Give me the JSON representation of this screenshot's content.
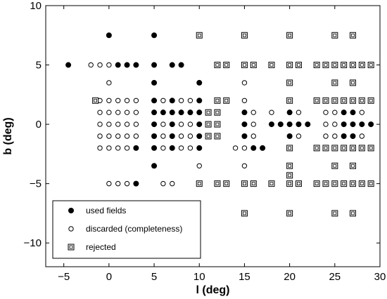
{
  "chart_data": {
    "type": "scatter",
    "title": "",
    "xlabel": "l (deg)",
    "ylabel": "b (deg)",
    "xlim": [
      -7,
      30
    ],
    "ylim": [
      -12,
      10
    ],
    "x_ticks": [
      -5,
      0,
      5,
      10,
      15,
      20,
      25,
      30
    ],
    "y_ticks": [
      -10,
      -5,
      0,
      5,
      10
    ],
    "x_tick_labels": [
      "−5",
      "0",
      "5",
      "10",
      "15",
      "20",
      "25",
      "30"
    ],
    "y_tick_labels": [
      "−10",
      "−5",
      "0",
      "5",
      "10"
    ],
    "grid": false,
    "legend_position": "lower-left",
    "series": [
      {
        "name": "used fields",
        "marker": "filled-circle",
        "color": "#000000",
        "points": [
          [
            -4.5,
            5
          ],
          [
            1,
            5
          ],
          [
            2,
            5
          ],
          [
            3,
            5
          ],
          [
            0,
            7.5
          ],
          [
            5,
            7.5
          ],
          [
            5,
            5
          ],
          [
            7,
            5
          ],
          [
            8,
            5
          ],
          [
            5,
            3.5
          ],
          [
            10,
            3.5
          ],
          [
            5,
            2
          ],
          [
            7,
            2
          ],
          [
            10,
            2
          ],
          [
            5,
            1
          ],
          [
            6,
            1
          ],
          [
            7,
            1
          ],
          [
            8,
            1
          ],
          [
            9,
            1
          ],
          [
            10,
            1
          ],
          [
            15,
            1
          ],
          [
            20,
            1
          ],
          [
            26,
            1
          ],
          [
            27,
            1
          ],
          [
            5,
            0
          ],
          [
            7,
            0
          ],
          [
            10,
            0
          ],
          [
            15,
            0
          ],
          [
            18,
            0
          ],
          [
            19,
            0
          ],
          [
            20,
            0
          ],
          [
            21,
            0
          ],
          [
            22,
            0
          ],
          [
            26,
            0
          ],
          [
            27,
            0
          ],
          [
            28,
            0
          ],
          [
            29,
            0
          ],
          [
            5,
            -1
          ],
          [
            7,
            -1
          ],
          [
            10,
            -1
          ],
          [
            15,
            -1
          ],
          [
            20,
            -1
          ],
          [
            26,
            -1
          ],
          [
            27,
            -1
          ],
          [
            3,
            -2
          ],
          [
            5,
            -2
          ],
          [
            7,
            -2
          ],
          [
            10,
            -2
          ],
          [
            16,
            -2
          ],
          [
            17,
            -2
          ],
          [
            5,
            -3.5
          ],
          [
            3,
            -5
          ]
        ]
      },
      {
        "name": "discarded (completeness)",
        "marker": "open-circle",
        "color": "#000000",
        "points": [
          [
            -2,
            5
          ],
          [
            -1,
            5
          ],
          [
            0,
            5
          ],
          [
            0,
            3.5
          ],
          [
            15,
            3.5
          ],
          [
            -1,
            2
          ],
          [
            0,
            2
          ],
          [
            1,
            2
          ],
          [
            2,
            2
          ],
          [
            3,
            2
          ],
          [
            6,
            2
          ],
          [
            8,
            2
          ],
          [
            9,
            2
          ],
          [
            15,
            2
          ],
          [
            -1,
            1
          ],
          [
            0,
            1
          ],
          [
            1,
            1
          ],
          [
            2,
            1
          ],
          [
            3,
            1
          ],
          [
            16,
            1
          ],
          [
            18,
            1
          ],
          [
            21,
            1
          ],
          [
            24,
            1
          ],
          [
            25,
            1
          ],
          [
            28,
            1
          ],
          [
            -1,
            0
          ],
          [
            0,
            0
          ],
          [
            1,
            0
          ],
          [
            2,
            0
          ],
          [
            3,
            0
          ],
          [
            6,
            0
          ],
          [
            8,
            0
          ],
          [
            9,
            0
          ],
          [
            16,
            0
          ],
          [
            24,
            0
          ],
          [
            25,
            0
          ],
          [
            -1,
            -1
          ],
          [
            0,
            -1
          ],
          [
            1,
            -1
          ],
          [
            2,
            -1
          ],
          [
            3,
            -1
          ],
          [
            6,
            -1
          ],
          [
            8,
            -1
          ],
          [
            9,
            -1
          ],
          [
            16,
            -1
          ],
          [
            21,
            -1
          ],
          [
            24,
            -1
          ],
          [
            25,
            -1
          ],
          [
            28,
            -1
          ],
          [
            -1,
            -2
          ],
          [
            0,
            -2
          ],
          [
            1,
            -2
          ],
          [
            2,
            -2
          ],
          [
            6,
            -2
          ],
          [
            8,
            -2
          ],
          [
            9,
            -2
          ],
          [
            14,
            -2
          ],
          [
            15,
            -2
          ],
          [
            10,
            -3.5
          ],
          [
            15,
            -3.5
          ],
          [
            0,
            -5
          ],
          [
            1,
            -5
          ],
          [
            2,
            -5
          ],
          [
            6,
            -5
          ],
          [
            7,
            -5
          ]
        ]
      },
      {
        "name": "rejected",
        "marker": "open-square",
        "color": "#000000",
        "points": [
          [
            10,
            7.5
          ],
          [
            15,
            7.5
          ],
          [
            20,
            7.5
          ],
          [
            25,
            7.5
          ],
          [
            27,
            7.5
          ],
          [
            12,
            5
          ],
          [
            13,
            5
          ],
          [
            15,
            5
          ],
          [
            16,
            5
          ],
          [
            18,
            5
          ],
          [
            20,
            5
          ],
          [
            21,
            5
          ],
          [
            23,
            5
          ],
          [
            24,
            5
          ],
          [
            25,
            5
          ],
          [
            26,
            5
          ],
          [
            27,
            5
          ],
          [
            28,
            5
          ],
          [
            29,
            5
          ],
          [
            20,
            3.5
          ],
          [
            25,
            3.5
          ],
          [
            27,
            3.5
          ],
          [
            -1.5,
            2
          ],
          [
            12,
            2
          ],
          [
            13,
            2
          ],
          [
            20,
            2
          ],
          [
            23,
            2
          ],
          [
            24,
            2
          ],
          [
            25,
            2
          ],
          [
            26,
            2
          ],
          [
            27,
            2
          ],
          [
            28,
            2
          ],
          [
            29,
            2
          ],
          [
            11,
            1
          ],
          [
            12,
            1
          ],
          [
            11,
            0
          ],
          [
            12,
            0
          ],
          [
            11,
            -1
          ],
          [
            12,
            -1
          ],
          [
            20,
            -2
          ],
          [
            23,
            -2
          ],
          [
            24,
            -2
          ],
          [
            25,
            -2
          ],
          [
            26,
            -2
          ],
          [
            27,
            -2
          ],
          [
            28,
            -2
          ],
          [
            29,
            -2
          ],
          [
            20,
            -3.5
          ],
          [
            25,
            -3.5
          ],
          [
            27,
            -3.5
          ],
          [
            20,
            -4.3
          ],
          [
            10,
            -5
          ],
          [
            12,
            -5
          ],
          [
            13,
            -5
          ],
          [
            15,
            -5
          ],
          [
            16,
            -5
          ],
          [
            18,
            -5
          ],
          [
            20,
            -5
          ],
          [
            21,
            -5
          ],
          [
            23,
            -5
          ],
          [
            24,
            -5
          ],
          [
            25,
            -5
          ],
          [
            26,
            -5
          ],
          [
            27,
            -5
          ],
          [
            28,
            -5
          ],
          [
            29,
            -5
          ],
          [
            15,
            -7.5
          ],
          [
            20,
            -7.5
          ],
          [
            25,
            -7.5
          ],
          [
            27,
            -7.5
          ]
        ]
      }
    ]
  }
}
